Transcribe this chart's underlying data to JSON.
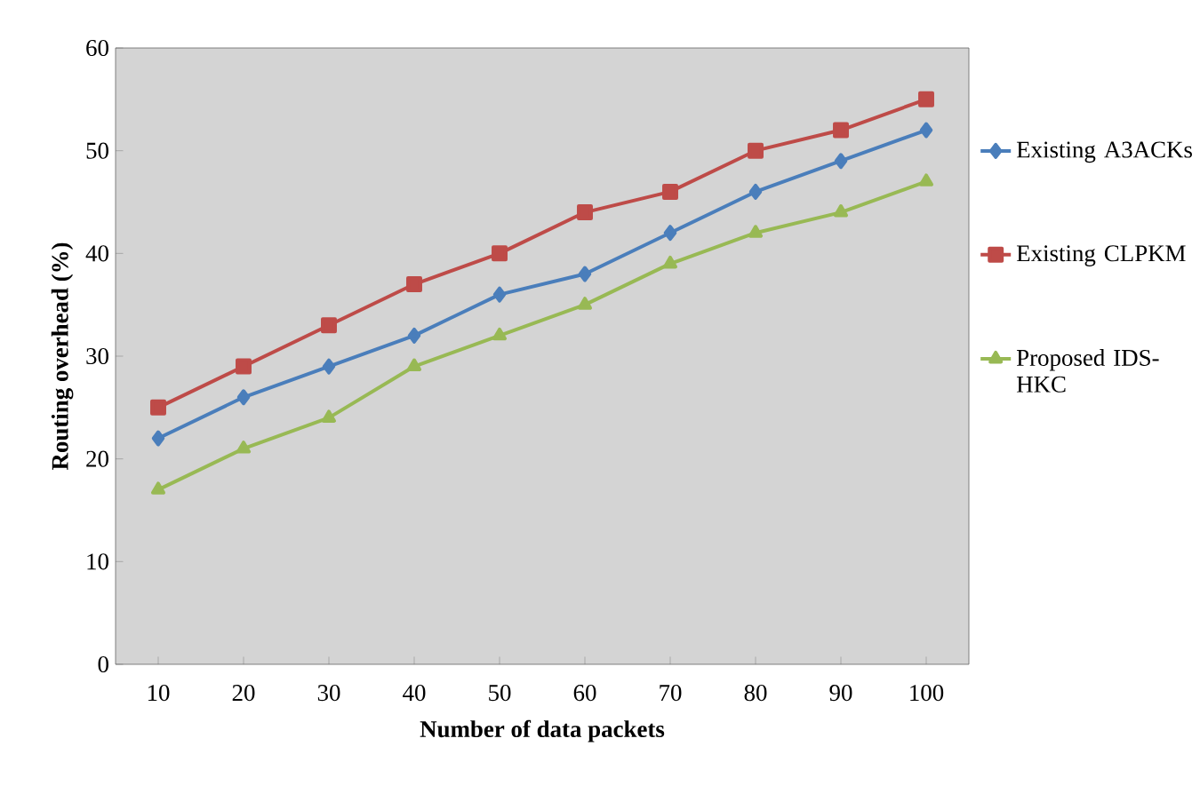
{
  "chart_data": {
    "type": "line",
    "xlabel": "Number of data packets",
    "ylabel": "Routing overhead (%)",
    "categories": [
      "10",
      "20",
      "30",
      "40",
      "50",
      "60",
      "70",
      "80",
      "90",
      "100"
    ],
    "series": [
      {
        "name": "Existing A3ACKs",
        "color": "#4a7ebb",
        "marker": "diamond",
        "values": [
          22,
          26,
          29,
          32,
          36,
          38,
          42,
          46,
          49,
          52
        ]
      },
      {
        "name": "Existing CLPKM",
        "color": "#be4b48",
        "marker": "square",
        "values": [
          25,
          29,
          33,
          37,
          40,
          44,
          46,
          50,
          52,
          55
        ]
      },
      {
        "name": "Proposed IDS-HKC",
        "color": "#98b954",
        "marker": "triangle",
        "values": [
          17,
          21,
          24,
          29,
          32,
          35,
          39,
          42,
          44,
          47
        ]
      }
    ],
    "ylim": [
      0,
      60
    ],
    "yticks": [
      0,
      10,
      20,
      30,
      40,
      50,
      60
    ],
    "grid": false,
    "legend": "right",
    "line_style": "solid"
  }
}
